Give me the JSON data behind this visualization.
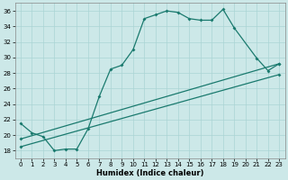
{
  "xlabel": "Humidex (Indice chaleur)",
  "bg_color": "#cce8e8",
  "line_color": "#1a7a6e",
  "xlim": [
    -0.5,
    23.5
  ],
  "ylim": [
    17,
    37
  ],
  "yticks": [
    18,
    20,
    22,
    24,
    26,
    28,
    30,
    32,
    34,
    36
  ],
  "xticks": [
    0,
    1,
    2,
    3,
    4,
    5,
    6,
    7,
    8,
    9,
    10,
    11,
    12,
    13,
    14,
    15,
    16,
    17,
    18,
    19,
    20,
    21,
    22,
    23
  ],
  "curve1_x": [
    0,
    1,
    2,
    3,
    4,
    5,
    6,
    7,
    8,
    9,
    10,
    11,
    12,
    13,
    14,
    15,
    16,
    17,
    18,
    19,
    21,
    22,
    23
  ],
  "curve1_y": [
    21.5,
    20.3,
    19.8,
    18.0,
    18.2,
    18.2,
    20.8,
    25.0,
    28.5,
    29.0,
    31.0,
    35.0,
    35.5,
    36.0,
    35.8,
    35.0,
    34.8,
    34.8,
    36.2,
    33.8,
    29.9,
    28.3,
    29.2
  ],
  "line1_x": [
    0,
    23
  ],
  "line1_y": [
    19.5,
    29.2
  ],
  "line2_x": [
    0,
    23
  ],
  "line2_y": [
    18.5,
    27.8
  ],
  "xlabel_fontsize": 6,
  "tick_fontsize": 5
}
